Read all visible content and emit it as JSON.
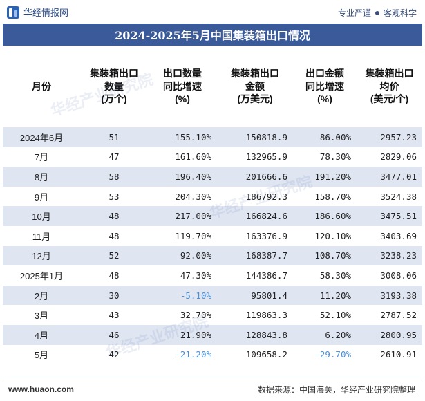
{
  "brand": {
    "name": "华经情报网"
  },
  "tagline": {
    "left": "专业严谨",
    "right": "客观科学"
  },
  "title": "2024-2025年5月中国集装箱出口情况",
  "headers": [
    "月份",
    "集装箱出口\n数量\n(万个)",
    "出口数量\n同比增速\n(%)",
    "集装箱出口\n金额\n(万美元)",
    "出口金额\n同比增速\n(%)",
    "集装箱出口\n均价\n(美元/个)"
  ],
  "rows": [
    {
      "month": "2024年6月",
      "qty": "51",
      "qty_yoy": "155.10%",
      "amount": "150818.9",
      "amount_yoy": "86.00%",
      "price": "2957.23"
    },
    {
      "month": "7月",
      "qty": "47",
      "qty_yoy": "161.60%",
      "amount": "132965.9",
      "amount_yoy": "78.30%",
      "price": "2829.06"
    },
    {
      "month": "8月",
      "qty": "58",
      "qty_yoy": "196.40%",
      "amount": "201666.6",
      "amount_yoy": "191.20%",
      "price": "3477.01"
    },
    {
      "month": "9月",
      "qty": "53",
      "qty_yoy": "204.30%",
      "amount": "186792.3",
      "amount_yoy": "158.70%",
      "price": "3524.38"
    },
    {
      "month": "10月",
      "qty": "48",
      "qty_yoy": "217.00%",
      "amount": "166824.6",
      "amount_yoy": "186.60%",
      "price": "3475.51"
    },
    {
      "month": "11月",
      "qty": "48",
      "qty_yoy": "119.70%",
      "amount": "163376.9",
      "amount_yoy": "120.10%",
      "price": "3403.69"
    },
    {
      "month": "12月",
      "qty": "52",
      "qty_yoy": "92.00%",
      "amount": "168387.7",
      "amount_yoy": "108.70%",
      "price": "3238.23"
    },
    {
      "month": "2025年1月",
      "qty": "48",
      "qty_yoy": "47.30%",
      "amount": "144386.7",
      "amount_yoy": "58.30%",
      "price": "3008.06"
    },
    {
      "month": "2月",
      "qty": "30",
      "qty_yoy": "-5.10%",
      "amount": "95801.4",
      "amount_yoy": "11.20%",
      "price": "3193.38"
    },
    {
      "month": "3月",
      "qty": "43",
      "qty_yoy": "32.70%",
      "amount": "119863.3",
      "amount_yoy": "52.10%",
      "price": "2787.52"
    },
    {
      "month": "4月",
      "qty": "46",
      "qty_yoy": "21.90%",
      "amount": "128843.8",
      "amount_yoy": "6.20%",
      "price": "2800.95"
    },
    {
      "month": "5月",
      "qty": "42",
      "qty_yoy": "-21.20%",
      "amount": "109658.2",
      "amount_yoy": "-29.70%",
      "price": "2610.91"
    }
  ],
  "footer": {
    "url": "www.huaon.com",
    "source": "数据来源：中国海关，华经产业研究院整理"
  },
  "watermark": "华经产业研究院",
  "colors": {
    "title_bg": "#3b5a99",
    "stripe": "#dfe6f2",
    "negative": "#4a90d9"
  }
}
